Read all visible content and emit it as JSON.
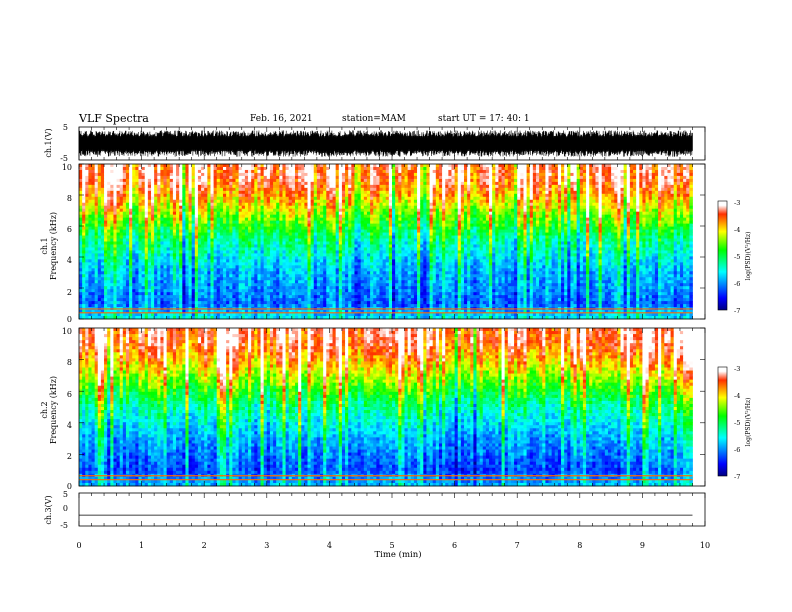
{
  "header": {
    "title": "VLF Spectra",
    "date": "Feb. 16, 2021",
    "station": "station=MAM",
    "start": "start  UT =   17: 40: 1"
  },
  "chart_data": [
    {
      "type": "line",
      "panel": "ch1-waveform",
      "ylabel": "ch.1(V)",
      "ylim": [
        -5,
        5
      ],
      "yticks": [
        "5",
        "-5"
      ],
      "xlim": [
        0,
        10
      ],
      "amplitude_range": [
        -4.0,
        4.0
      ],
      "color": "#000000"
    },
    {
      "type": "heatmap",
      "panel": "ch1-spectrogram",
      "ylabel_line1": "ch.1",
      "ylabel_line2": "Frequency (kHz)",
      "ylim": [
        0,
        10
      ],
      "yticks": [
        "0",
        "2",
        "4",
        "6",
        "8",
        "10"
      ],
      "xlim": [
        0,
        9.8
      ],
      "colorbar": {
        "label": "log(PSD)(V²/Hz)",
        "range": [
          -7,
          -3
        ],
        "ticks": [
          "-3",
          "-4",
          "-5",
          "-6",
          "-7"
        ]
      },
      "profile_note": "PSD rises from ~-6.3 at low frequency to ~-3.2 near 10 kHz; bright horizontal lines at ~0.4 and ~0.6 kHz",
      "psd_by_freq": {
        "freq_khz": [
          0,
          1,
          2,
          3,
          4,
          5,
          6,
          7,
          8,
          9,
          10
        ],
        "log_psd": [
          -5.6,
          -6.2,
          -6.0,
          -5.9,
          -5.6,
          -5.3,
          -4.8,
          -4.3,
          -3.8,
          -3.4,
          -3.3
        ]
      }
    },
    {
      "type": "heatmap",
      "panel": "ch2-spectrogram",
      "ylabel_line1": "ch.2",
      "ylabel_line2": "Frequency (kHz)",
      "ylim": [
        0,
        10
      ],
      "yticks": [
        "0",
        "2",
        "4",
        "6",
        "8",
        "10"
      ],
      "xlim": [
        0,
        9.8
      ],
      "colorbar": {
        "label": "log(PSD)(V²/Hz)",
        "range": [
          -7,
          -3
        ],
        "ticks": [
          "-3",
          "-4",
          "-5",
          "-6",
          "-7"
        ]
      },
      "psd_by_freq": {
        "freq_khz": [
          0,
          1,
          2,
          3,
          4,
          5,
          6,
          7,
          8,
          9,
          10
        ],
        "log_psd": [
          -5.8,
          -6.3,
          -6.1,
          -5.9,
          -5.6,
          -5.3,
          -4.8,
          -4.3,
          -3.8,
          -3.4,
          -3.3
        ]
      }
    },
    {
      "type": "line",
      "panel": "ch3-waveform",
      "ylabel": "ch.3(V)",
      "ylim": [
        -5,
        5
      ],
      "yticks": [
        "5",
        "0",
        "-5"
      ],
      "xlim": [
        0,
        10
      ],
      "values": [
        -1.7
      ],
      "xlabel": "Time (min)",
      "xticks": [
        "0",
        "1",
        "2",
        "3",
        "4",
        "5",
        "6",
        "7",
        "8",
        "9",
        "10"
      ],
      "color": "#000000"
    }
  ]
}
